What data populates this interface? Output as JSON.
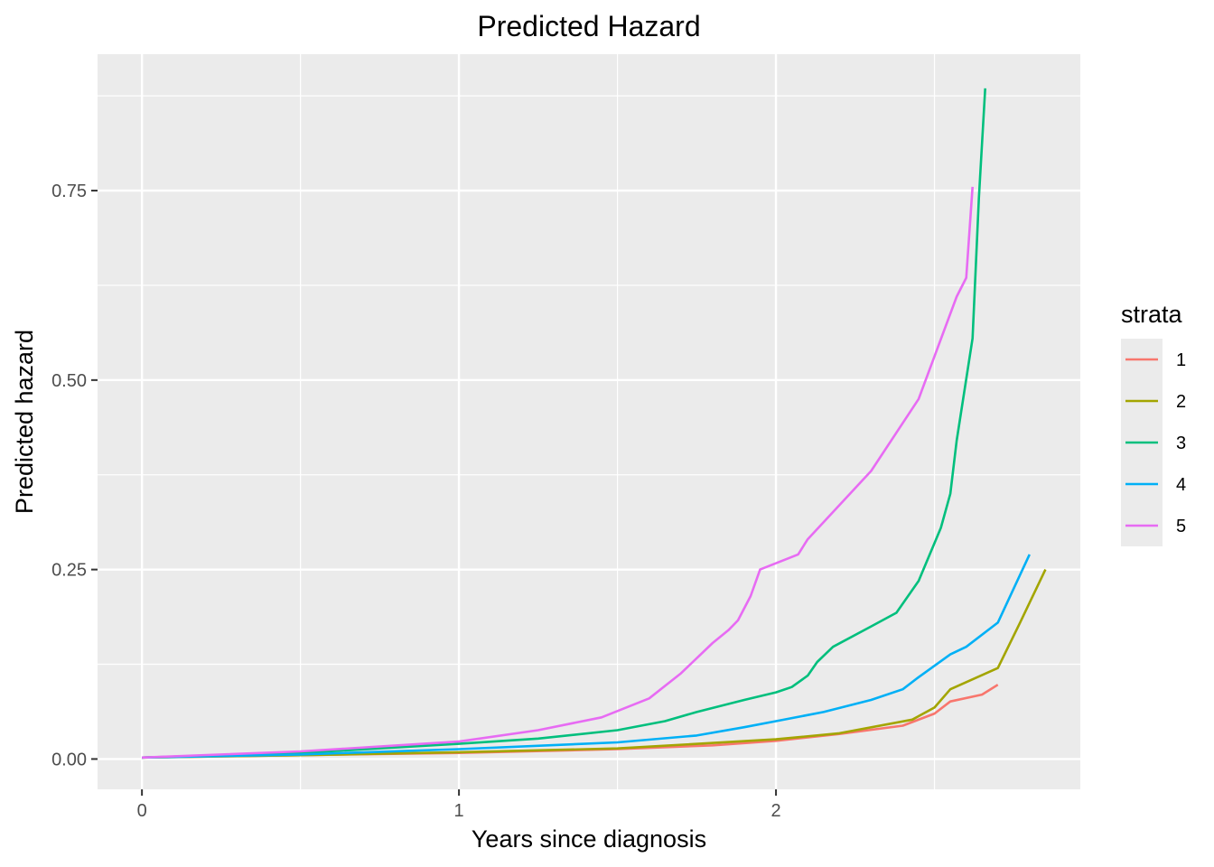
{
  "chart_data": {
    "type": "line",
    "title": "Predicted Hazard",
    "xlabel": "Years since diagnosis",
    "ylabel": "Predicted hazard",
    "xlim": [
      -0.14,
      2.96
    ],
    "ylim": [
      -0.04,
      0.93
    ],
    "x_ticks": [
      0,
      1,
      2
    ],
    "x_tick_labels": [
      "0",
      "1",
      "2"
    ],
    "x_minor_ticks": [
      0.5,
      1.5,
      2.5
    ],
    "y_ticks": [
      0,
      0.25,
      0.5,
      0.75
    ],
    "y_tick_labels": [
      "0.00",
      "0.25",
      "0.50",
      "0.75"
    ],
    "y_minor_ticks": [
      0.125,
      0.375,
      0.625,
      0.875
    ],
    "grid": true,
    "legend": {
      "title": "strata",
      "position": "right"
    },
    "series": [
      {
        "name": "1",
        "color": "#F8766D",
        "x": [
          0,
          0.5,
          1.0,
          1.5,
          1.8,
          2.0,
          2.2,
          2.4,
          2.5,
          2.55,
          2.65,
          2.7
        ],
        "y": [
          0.002,
          0.005,
          0.008,
          0.013,
          0.018,
          0.024,
          0.033,
          0.044,
          0.06,
          0.076,
          0.085,
          0.098
        ]
      },
      {
        "name": "2",
        "color": "#A3A500",
        "x": [
          0,
          0.5,
          1.0,
          1.5,
          2.0,
          2.2,
          2.43,
          2.5,
          2.55,
          2.7,
          2.77,
          2.85
        ],
        "y": [
          0.002,
          0.005,
          0.009,
          0.014,
          0.026,
          0.034,
          0.052,
          0.068,
          0.092,
          0.12,
          0.18,
          0.25
        ]
      },
      {
        "name": "3",
        "color": "#00BF7D",
        "x": [
          0,
          0.5,
          1.0,
          1.25,
          1.5,
          1.65,
          1.75,
          1.9,
          2.0,
          2.05,
          2.1,
          2.13,
          2.18,
          2.3,
          2.38,
          2.45,
          2.5,
          2.52,
          2.55,
          2.57,
          2.62,
          2.64,
          2.66
        ],
        "y": [
          0.002,
          0.008,
          0.02,
          0.027,
          0.038,
          0.05,
          0.062,
          0.078,
          0.088,
          0.095,
          0.11,
          0.128,
          0.148,
          0.175,
          0.193,
          0.235,
          0.285,
          0.305,
          0.35,
          0.42,
          0.555,
          0.74,
          0.885
        ]
      },
      {
        "name": "4",
        "color": "#00B0F6",
        "x": [
          0,
          0.5,
          1.0,
          1.5,
          1.75,
          1.9,
          2.0,
          2.15,
          2.3,
          2.4,
          2.45,
          2.55,
          2.6,
          2.7,
          2.8
        ],
        "y": [
          0.002,
          0.006,
          0.013,
          0.022,
          0.031,
          0.042,
          0.05,
          0.062,
          0.078,
          0.092,
          0.108,
          0.138,
          0.148,
          0.18,
          0.27
        ]
      },
      {
        "name": "5",
        "color": "#E76BF3",
        "x": [
          0,
          0.5,
          1.0,
          1.25,
          1.45,
          1.6,
          1.7,
          1.8,
          1.85,
          1.88,
          1.92,
          1.95,
          2.07,
          2.1,
          2.3,
          2.45,
          2.57,
          2.6,
          2.62
        ],
        "y": [
          0.002,
          0.01,
          0.023,
          0.038,
          0.055,
          0.08,
          0.113,
          0.153,
          0.17,
          0.183,
          0.215,
          0.25,
          0.27,
          0.29,
          0.38,
          0.475,
          0.61,
          0.635,
          0.755
        ]
      }
    ]
  }
}
